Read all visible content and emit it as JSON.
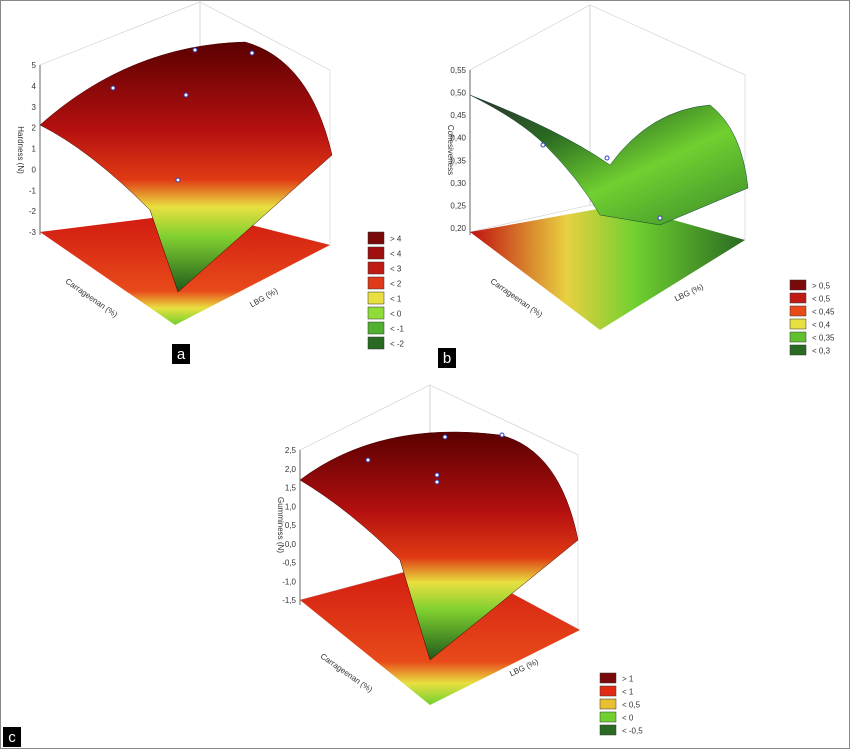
{
  "panels": [
    {
      "label": "a",
      "z_axis": "Hardness (N)",
      "x_axis": "Carrageenan (%)",
      "y_axis": "LBG (%)",
      "z_ticks": [
        "5",
        "4",
        "3",
        "2",
        "1",
        "0",
        "-1",
        "-2",
        "-3"
      ],
      "legend": [
        "> 4",
        "< 4",
        "< 3",
        "< 2",
        "< 1",
        "< 0",
        "< -1",
        "< -2"
      ],
      "legend_colors": [
        "#7a0a0a",
        "#a01010",
        "#c01a14",
        "#e03a1a",
        "#e8e040",
        "#90dc38",
        "#50b030",
        "#2a6a22"
      ]
    },
    {
      "label": "b",
      "z_axis": "Cohesiveness",
      "x_axis": "Carrageenan (%)",
      "y_axis": "LBG (%)",
      "z_ticks": [
        "0,55",
        "0,50",
        "0,45",
        "0,40",
        "0,35",
        "0,30",
        "0,25",
        "0,20"
      ],
      "legend": [
        "> 0,5",
        "< 0,5",
        "< 0,45",
        "< 0,4",
        "< 0,35",
        "< 0,3"
      ],
      "legend_colors": [
        "#7a0a0a",
        "#c01a14",
        "#e84a1a",
        "#e8e040",
        "#60c030",
        "#2a6a22"
      ]
    },
    {
      "label": "c",
      "z_axis": "Gumminess (N)",
      "x_axis": "Carrageenan (%)",
      "y_axis": "LBG (%)",
      "z_ticks": [
        "2,5",
        "2,0",
        "1,5",
        "1,0",
        "0,5",
        "0,0",
        "-0,5",
        "-1,0",
        "-1,5"
      ],
      "legend": [
        "> 1",
        "< 1",
        "< 0,5",
        "< 0",
        "< -0,5"
      ],
      "legend_colors": [
        "#7a0a0a",
        "#e02a14",
        "#e8c030",
        "#70d030",
        "#2a6a22"
      ]
    }
  ]
}
